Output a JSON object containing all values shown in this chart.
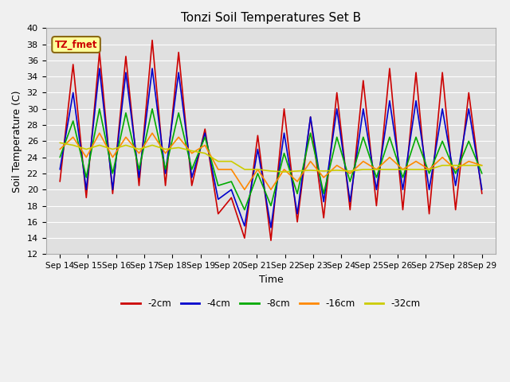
{
  "title": "Tonzi Soil Temperatures Set B",
  "xlabel": "Time",
  "ylabel": "Soil Temperature (C)",
  "ylim": [
    12,
    40
  ],
  "background_color": "#f0f0f0",
  "plot_bg_color": "#e0e0e0",
  "grid_color": "#ffffff",
  "annotation_label": "TZ_fmet",
  "annotation_bg": "#ffff99",
  "annotation_border": "#8b6914",
  "x_labels": [
    "Sep 14",
    "Sep 15",
    "Sep 16",
    "Sep 17",
    "Sep 18",
    "Sep 19",
    "Sep 20",
    "Sep 21",
    "Sep 22",
    "Sep 23",
    "Sep 24",
    "Sep 25",
    "Sep 26",
    "Sep 27",
    "Sep 28",
    "Sep 29"
  ],
  "series": {
    "-2cm": {
      "color": "#cc0000",
      "data": [
        21.0,
        35.5,
        19.0,
        37.0,
        19.5,
        36.5,
        20.5,
        38.5,
        20.5,
        37.0,
        20.5,
        27.5,
        17.0,
        19.0,
        14.0,
        26.7,
        13.7,
        30.0,
        16.0,
        29.0,
        16.5,
        32.0,
        17.5,
        33.5,
        18.0,
        35.0,
        17.5,
        34.5,
        17.0,
        34.5,
        17.5,
        32.0,
        19.5
      ]
    },
    "-4cm": {
      "color": "#0000cc",
      "data": [
        22.5,
        32.0,
        20.0,
        35.0,
        20.0,
        34.5,
        21.5,
        35.0,
        22.0,
        34.5,
        21.5,
        27.0,
        18.8,
        20.0,
        15.5,
        25.0,
        15.3,
        27.0,
        17.0,
        29.0,
        18.5,
        30.0,
        18.5,
        30.0,
        20.0,
        31.0,
        20.0,
        31.0,
        20.0,
        30.0,
        20.5,
        30.0,
        20.0
      ]
    },
    "-8cm": {
      "color": "#00aa00",
      "data": [
        24.0,
        28.5,
        21.5,
        30.0,
        22.0,
        29.5,
        22.5,
        30.0,
        22.5,
        29.5,
        22.5,
        26.5,
        20.5,
        21.0,
        17.5,
        22.0,
        18.0,
        24.5,
        19.5,
        27.0,
        19.5,
        26.5,
        21.0,
        26.5,
        21.5,
        26.5,
        21.5,
        26.5,
        22.0,
        26.0,
        22.0,
        26.0,
        22.0
      ]
    },
    "-16cm": {
      "color": "#ff8800",
      "data": [
        25.0,
        26.5,
        24.0,
        27.0,
        24.0,
        26.5,
        24.5,
        27.0,
        24.5,
        26.5,
        24.5,
        25.5,
        22.5,
        22.5,
        20.0,
        22.5,
        20.0,
        22.5,
        21.0,
        23.5,
        21.5,
        23.0,
        22.0,
        23.5,
        22.5,
        24.0,
        22.5,
        23.5,
        22.5,
        24.0,
        22.5,
        23.5,
        23.0
      ]
    },
    "-32cm": {
      "color": "#cccc00",
      "data": [
        25.8,
        25.5,
        25.0,
        25.5,
        25.0,
        25.5,
        25.0,
        25.5,
        25.0,
        25.2,
        24.8,
        24.5,
        23.5,
        23.5,
        22.5,
        22.5,
        22.3,
        22.2,
        22.3,
        22.4,
        22.3,
        22.4,
        22.3,
        22.5,
        22.5,
        22.5,
        22.5,
        22.5,
        22.5,
        23.0,
        23.0,
        23.0,
        23.0
      ]
    }
  },
  "series_order": [
    "-2cm",
    "-4cm",
    "-8cm",
    "-16cm",
    "-32cm"
  ],
  "legend_entries": [
    "-2cm",
    "-4cm",
    "-8cm",
    "-16cm",
    "-32cm"
  ],
  "legend_colors": [
    "#cc0000",
    "#0000cc",
    "#00aa00",
    "#ff8800",
    "#cccc00"
  ]
}
